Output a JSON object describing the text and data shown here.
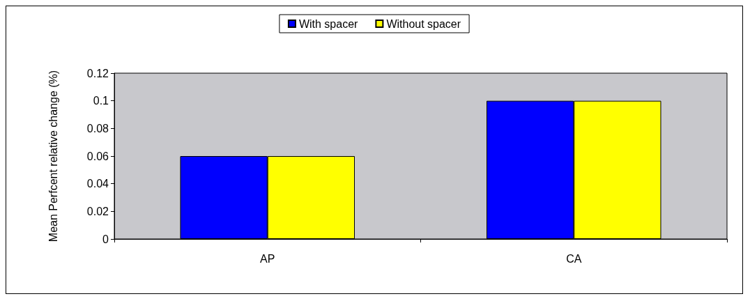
{
  "chart_data": {
    "type": "bar",
    "ylabel": "Mean Perfcent relative change (%)",
    "categories": [
      "AP",
      "CA"
    ],
    "series": [
      {
        "name": "With spacer",
        "color": "#0000ff",
        "values": [
          0.06,
          0.1
        ]
      },
      {
        "name": "Without spacer",
        "color": "#ffff00",
        "values": [
          0.06,
          0.1
        ]
      }
    ],
    "ylim": [
      0,
      0.12
    ],
    "yticks": [
      0,
      0.02,
      0.04,
      0.06,
      0.08,
      0.1,
      0.12
    ],
    "grid": false,
    "legend": "top"
  }
}
